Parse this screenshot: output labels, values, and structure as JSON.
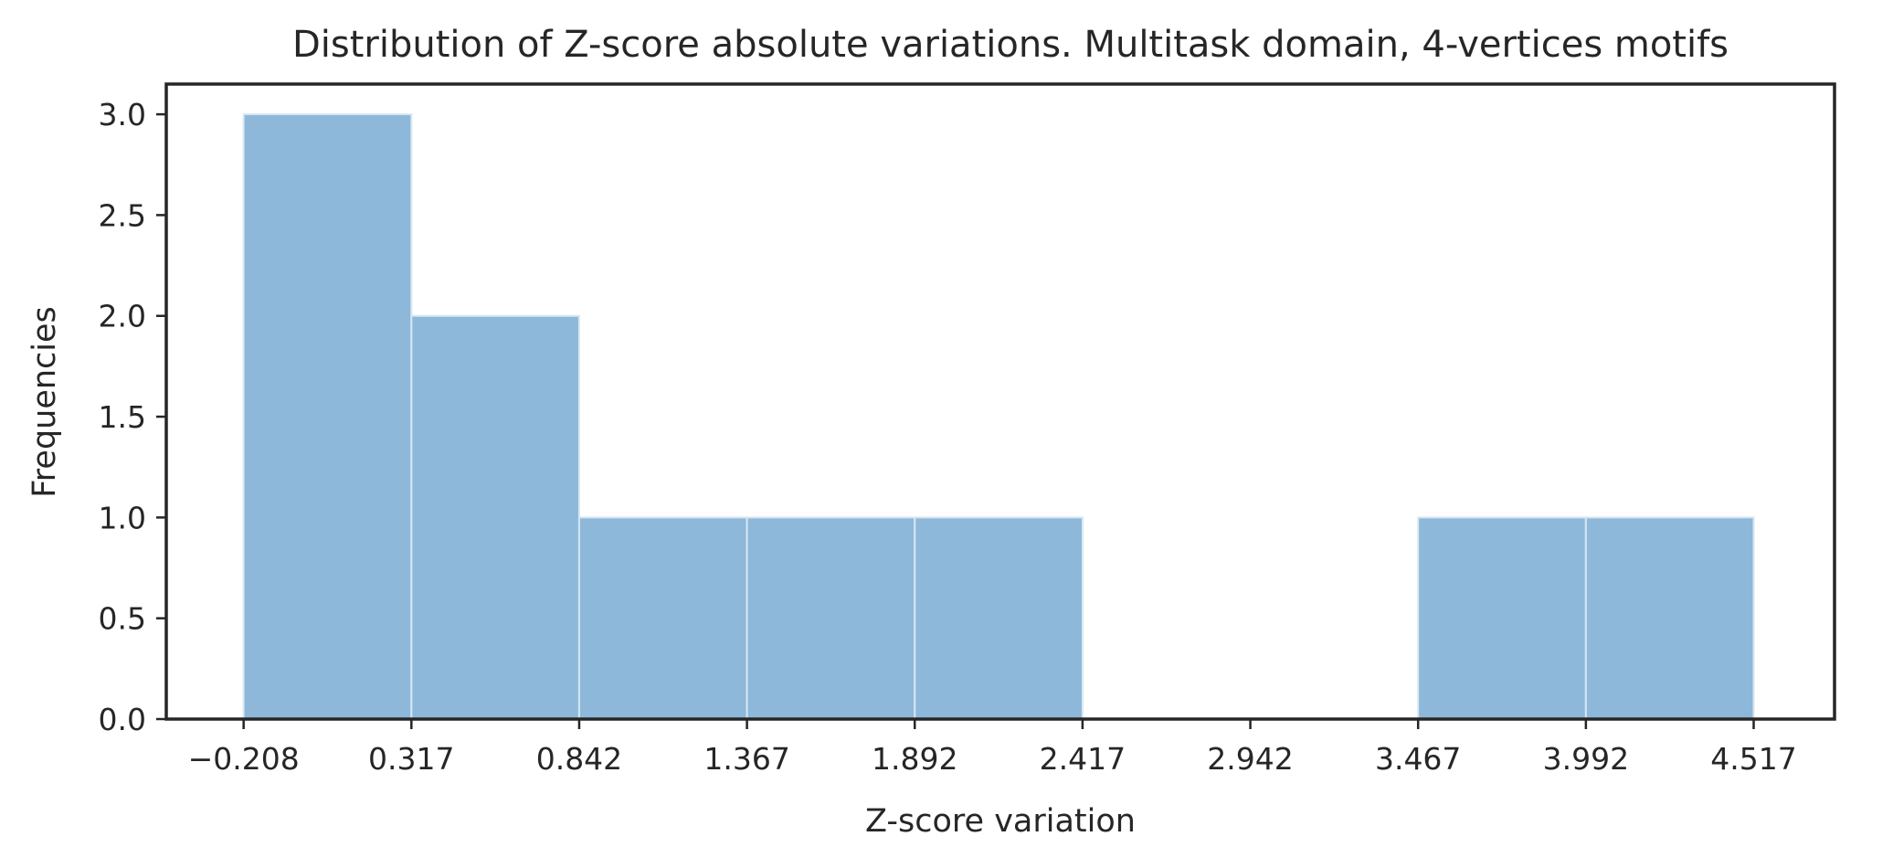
{
  "chart_data": {
    "type": "bar",
    "subtype": "histogram",
    "title": "Distribution of Z-score absolute variations. Multitask domain, 4-vertices motifs",
    "xlabel": "Z-score variation",
    "ylabel": "Frequencies",
    "bin_edges": [
      -0.208,
      0.317,
      0.842,
      1.367,
      1.892,
      2.417,
      2.942,
      3.467,
      3.992,
      4.517
    ],
    "values": [
      3,
      2,
      1,
      1,
      1,
      0,
      0,
      1,
      1
    ],
    "xticks": [
      "−0.208",
      "0.317",
      "0.842",
      "1.367",
      "1.892",
      "2.417",
      "2.942",
      "3.467",
      "3.992",
      "4.517"
    ],
    "yticks": [
      "0.0",
      "0.5",
      "1.0",
      "1.5",
      "2.0",
      "2.5",
      "3.0"
    ],
    "ylim": [
      0,
      3.15
    ],
    "xlim": [
      -0.45,
      4.77
    ],
    "grid": false,
    "colors": {
      "bar_fill": "#8db8d9",
      "bar_edge": "#d6e6f2",
      "axis": "#262626",
      "text": "#262626"
    }
  }
}
